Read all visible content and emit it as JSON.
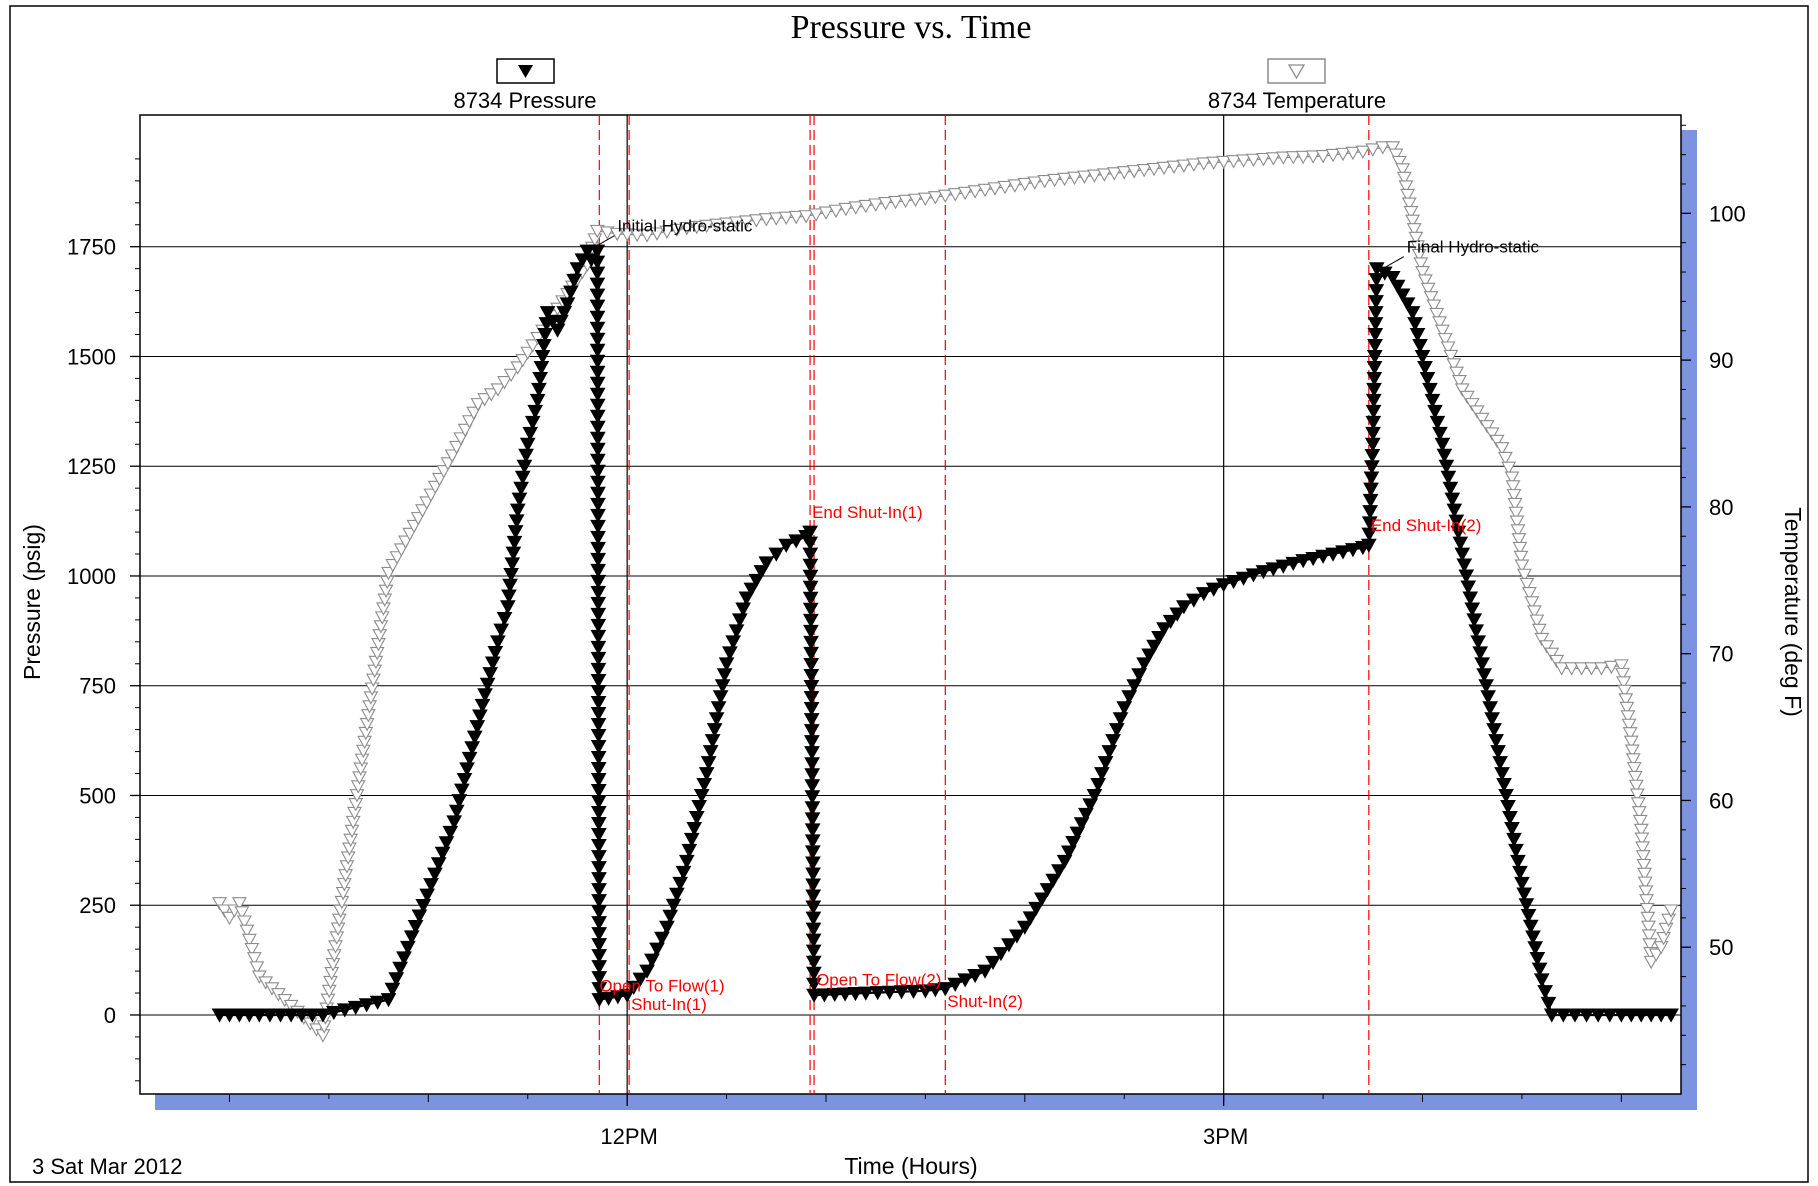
{
  "chart_data": {
    "type": "line",
    "title": "Pressure vs. Time",
    "xlabel": "Time (Hours)",
    "ylabel": "Pressure (psig)",
    "y2label": "Temperature (deg F)",
    "date_label": "3 Sat Mar 2012",
    "x_unit": "hours_from_midnight",
    "xlim": [
      9.55,
      17.3
    ],
    "ylim": [
      -180,
      2050
    ],
    "y2lim": [
      40,
      106.7
    ],
    "x_tick_labels": [
      {
        "x": 12,
        "label": "12PM"
      },
      {
        "x": 15,
        "label": "3PM"
      }
    ],
    "y_ticks": [
      0,
      250,
      500,
      750,
      1000,
      1250,
      1500,
      1750
    ],
    "y2_ticks": [
      50,
      60,
      70,
      80,
      90,
      100
    ],
    "grid": true,
    "legend": [
      {
        "name": "8734 Pressure",
        "marker": "filled-triangle-down",
        "color": "#000000"
      },
      {
        "name": "8734 Temperature",
        "marker": "open-triangle-down",
        "color": "#8c8c8c"
      }
    ],
    "series": [
      {
        "name": "8734 Pressure",
        "axis": "left",
        "color": "#000000",
        "points": [
          [
            9.95,
            0
          ],
          [
            10.15,
            0
          ],
          [
            10.47,
            0
          ],
          [
            10.8,
            35
          ],
          [
            11.13,
            440
          ],
          [
            11.35,
            850
          ],
          [
            11.4,
            930
          ],
          [
            11.45,
            1150
          ],
          [
            11.5,
            1300
          ],
          [
            11.55,
            1400
          ],
          [
            11.6,
            1600
          ],
          [
            11.65,
            1560
          ],
          [
            11.7,
            1620
          ],
          [
            11.75,
            1700
          ],
          [
            11.8,
            1740
          ],
          [
            11.82,
            1720
          ],
          [
            11.85,
            1740
          ],
          [
            11.86,
            35
          ],
          [
            12.0,
            45
          ],
          [
            12.1,
            100
          ],
          [
            12.2,
            200
          ],
          [
            12.3,
            350
          ],
          [
            12.4,
            550
          ],
          [
            12.5,
            800
          ],
          [
            12.6,
            950
          ],
          [
            12.7,
            1030
          ],
          [
            12.8,
            1070
          ],
          [
            12.9,
            1090
          ],
          [
            12.92,
            1100
          ],
          [
            12.94,
            45
          ],
          [
            13.2,
            50
          ],
          [
            13.5,
            55
          ],
          [
            13.6,
            60
          ],
          [
            13.8,
            100
          ],
          [
            14.0,
            200
          ],
          [
            14.2,
            350
          ],
          [
            14.35,
            500
          ],
          [
            14.5,
            700
          ],
          [
            14.6,
            800
          ],
          [
            14.7,
            880
          ],
          [
            14.8,
            930
          ],
          [
            14.9,
            960
          ],
          [
            15.0,
            980
          ],
          [
            15.2,
            1010
          ],
          [
            15.4,
            1035
          ],
          [
            15.6,
            1055
          ],
          [
            15.7,
            1065
          ],
          [
            15.73,
            1070
          ],
          [
            15.75,
            1300
          ],
          [
            15.77,
            1700
          ],
          [
            15.85,
            1680
          ],
          [
            15.95,
            1600
          ],
          [
            16.0,
            1500
          ],
          [
            16.1,
            1300
          ],
          [
            16.2,
            1050
          ],
          [
            16.3,
            800
          ],
          [
            16.4,
            550
          ],
          [
            16.5,
            300
          ],
          [
            16.6,
            80
          ],
          [
            16.65,
            0
          ],
          [
            17.0,
            0
          ],
          [
            17.25,
            0
          ]
        ]
      },
      {
        "name": "8734 Temperature",
        "axis": "right",
        "color": "#8c8c8c",
        "points": [
          [
            9.95,
            53
          ],
          [
            10.0,
            52
          ],
          [
            10.05,
            53
          ],
          [
            10.15,
            48
          ],
          [
            10.47,
            44
          ],
          [
            10.8,
            75.5
          ],
          [
            11.12,
            83.5
          ],
          [
            11.25,
            87
          ],
          [
            11.35,
            88
          ],
          [
            11.45,
            89.5
          ],
          [
            11.5,
            90.5
          ],
          [
            11.6,
            92.5
          ],
          [
            11.7,
            94.5
          ],
          [
            11.8,
            96.5
          ],
          [
            11.85,
            98.8
          ],
          [
            11.95,
            98.6
          ],
          [
            12.1,
            98.5
          ],
          [
            12.3,
            99
          ],
          [
            12.5,
            99.3
          ],
          [
            12.7,
            99.6
          ],
          [
            12.9,
            99.8
          ],
          [
            13.1,
            100.3
          ],
          [
            13.3,
            100.7
          ],
          [
            13.5,
            101
          ],
          [
            13.7,
            101.4
          ],
          [
            13.9,
            101.8
          ],
          [
            14.1,
            102.2
          ],
          [
            14.3,
            102.5
          ],
          [
            14.5,
            102.8
          ],
          [
            14.7,
            103.1
          ],
          [
            14.9,
            103.4
          ],
          [
            15.1,
            103.6
          ],
          [
            15.3,
            103.8
          ],
          [
            15.5,
            103.9
          ],
          [
            15.7,
            104.2
          ],
          [
            15.8,
            104.5
          ],
          [
            15.85,
            104.5
          ],
          [
            15.9,
            103
          ],
          [
            16.0,
            96
          ],
          [
            16.1,
            92
          ],
          [
            16.2,
            88
          ],
          [
            16.3,
            86
          ],
          [
            16.4,
            84
          ],
          [
            16.45,
            82
          ],
          [
            16.5,
            76
          ],
          [
            16.6,
            71
          ],
          [
            16.7,
            69
          ],
          [
            16.8,
            69
          ],
          [
            16.9,
            69
          ],
          [
            17.0,
            69.2
          ],
          [
            17.05,
            64
          ],
          [
            17.1,
            58
          ],
          [
            17.15,
            49
          ],
          [
            17.2,
            50
          ],
          [
            17.25,
            52.5
          ]
        ]
      }
    ],
    "annotations": [
      {
        "text": "Initial Hydro-static",
        "x": 11.84,
        "y": 1750,
        "color": "#000000"
      },
      {
        "text": "Final Hydro-static",
        "x": 15.8,
        "y": 1700,
        "color": "#000000"
      },
      {
        "text": "End Shut-In(1)",
        "x": 12.92,
        "y": 1100,
        "color": "#ff0000"
      },
      {
        "text": "End Shut-In(2)",
        "x": 15.73,
        "y": 1070,
        "color": "#ff0000"
      },
      {
        "text": "Open To Flow(1)",
        "x": 11.86,
        "y": 35,
        "color": "#ff0000"
      },
      {
        "text": "Shut-In(1)",
        "x": 12.01,
        "y": 0,
        "color": "#ff0000"
      },
      {
        "text": "Open To Flow(2)",
        "x": 12.94,
        "y": 40,
        "color": "#ff0000"
      },
      {
        "text": "Shut-In(2)",
        "x": 13.6,
        "y": 0,
        "color": "#ff0000"
      }
    ],
    "event_lines": [
      11.86,
      12.01,
      12.92,
      12.94,
      13.6,
      15.73
    ]
  }
}
